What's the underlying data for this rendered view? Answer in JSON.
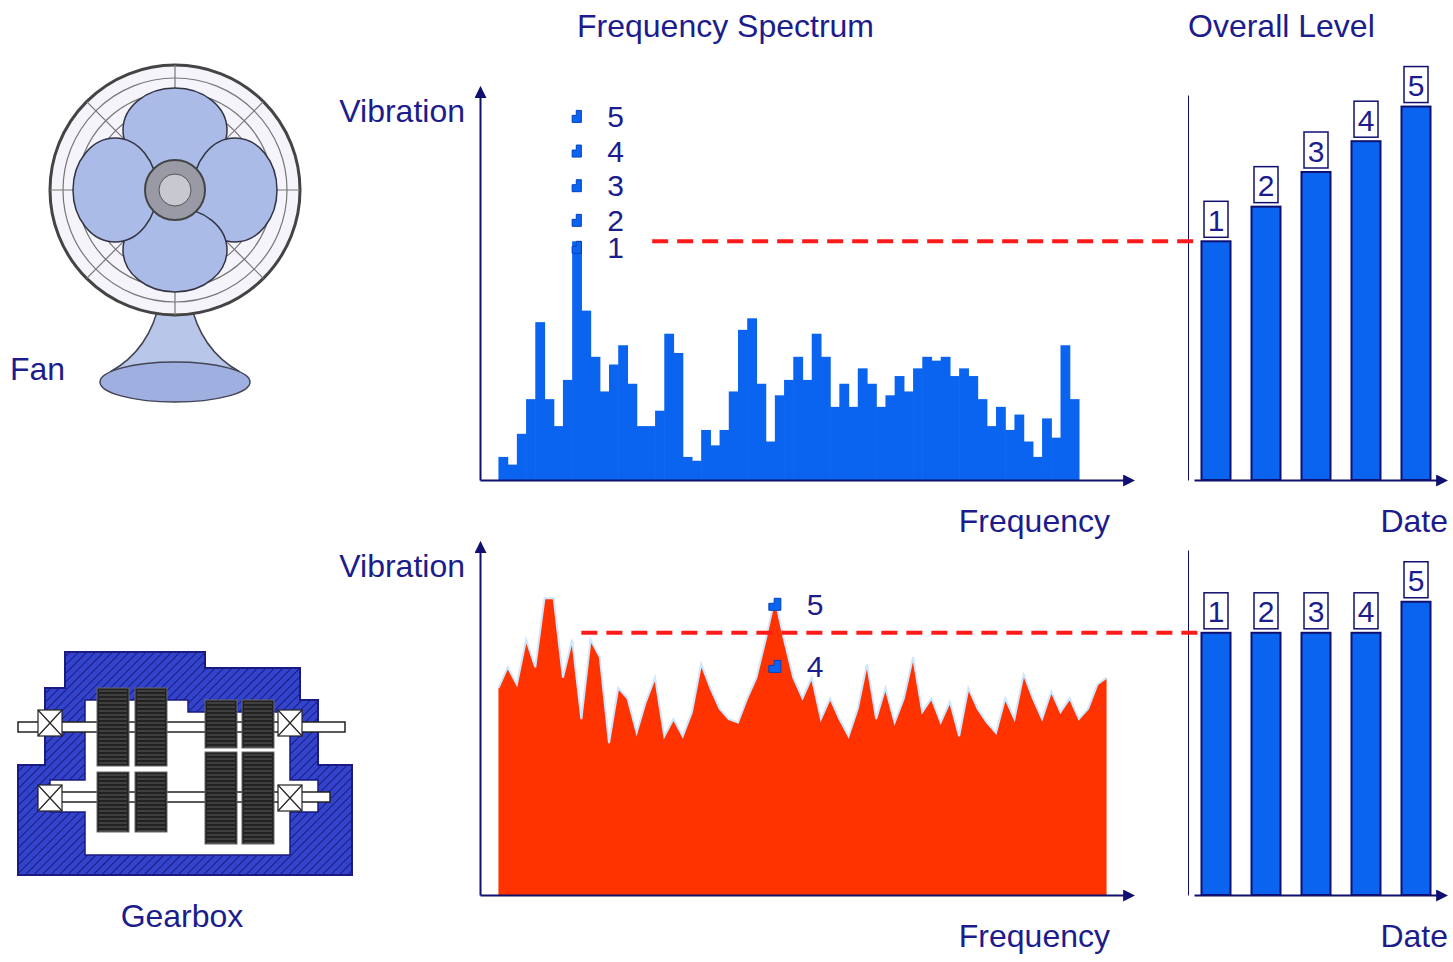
{
  "chart_data": [
    {
      "type": "histogram",
      "machine": "Fan",
      "title": "Frequency Spectrum",
      "y_label": "Vibration",
      "x_label": "Frequency",
      "bins": [
        2,
        3,
        4,
        5,
        6,
        7,
        8,
        9,
        10,
        11,
        12,
        13,
        14,
        15,
        16,
        17,
        18,
        19,
        20,
        21,
        22,
        23,
        24,
        25,
        26,
        27,
        28,
        29,
        30,
        31,
        32,
        33,
        34,
        35,
        36,
        37,
        38,
        39,
        40,
        41,
        42,
        43,
        44,
        45,
        46,
        47,
        48,
        49,
        50,
        51,
        52,
        53,
        54,
        55,
        56,
        57,
        58,
        59,
        60,
        61,
        62,
        63,
        64,
        65
      ],
      "values": [
        6,
        4,
        12,
        21,
        41,
        21,
        14,
        26,
        62,
        44,
        32,
        23,
        30,
        35,
        25,
        14,
        14,
        18,
        38,
        33,
        6,
        5,
        13,
        9,
        13,
        23,
        39,
        42,
        25,
        10,
        22,
        26,
        32,
        26,
        38,
        32,
        19,
        25,
        19,
        29,
        25,
        19,
        22,
        27,
        23,
        29,
        32,
        31,
        32,
        27,
        29,
        27,
        21,
        14,
        19,
        13,
        17,
        10,
        6,
        16,
        11,
        35,
        21
      ],
      "color": "#0a64f0",
      "xlim": [
        0,
        70
      ],
      "ylim": [
        0,
        100
      ],
      "tick_labels": false,
      "peak_levels": {
        "x": 10,
        "labels": [
          "1",
          "2",
          "3",
          "4",
          "5"
        ],
        "values": [
          62,
          69,
          78,
          87,
          96
        ]
      }
    },
    {
      "type": "bar",
      "title": "Overall Level",
      "x_label": "Date",
      "categories": [
        "1",
        "2",
        "3",
        "4",
        "5"
      ],
      "values": [
        62,
        71,
        80,
        88,
        97
      ],
      "color": "#0a64f0",
      "ylim": [
        0,
        100
      ],
      "tick_labels": "x"
    },
    {
      "type": "area",
      "machine": "Gearbox",
      "y_label": "Vibration",
      "x_label": "Frequency",
      "x": [
        2,
        3,
        4,
        5,
        6,
        7,
        8,
        9,
        10,
        11,
        12,
        13,
        14,
        15,
        16,
        17,
        18,
        19,
        20,
        21,
        22,
        23,
        24,
        25,
        26,
        27,
        28,
        29,
        30,
        31,
        32,
        33,
        34,
        35,
        36,
        37,
        38,
        39,
        40,
        41,
        42,
        43,
        44,
        45,
        46,
        47,
        48,
        49,
        50,
        51,
        52,
        53,
        54,
        55,
        56,
        57,
        58,
        59,
        60,
        61,
        62,
        63,
        64,
        65,
        66,
        67,
        68
      ],
      "values": [
        60,
        66,
        61,
        74,
        66,
        86,
        86,
        63,
        74,
        51,
        74,
        69,
        44,
        60,
        57,
        47,
        56,
        63,
        46,
        51,
        46,
        53,
        67,
        60,
        54,
        51,
        50,
        57,
        63,
        74,
        86,
        74,
        63,
        57,
        63,
        51,
        57,
        51,
        46,
        54,
        67,
        51,
        60,
        50,
        57,
        69,
        53,
        57,
        50,
        56,
        46,
        60,
        54,
        50,
        47,
        57,
        51,
        64,
        57,
        51,
        59,
        53,
        57,
        51,
        54,
        61,
        63
      ],
      "color": "#ff3300",
      "xlim": [
        0,
        70
      ],
      "ylim": [
        0,
        100
      ],
      "tick_labels": false,
      "peak_levels": {
        "x": 32,
        "labels": [
          "4",
          "5"
        ],
        "values": [
          68,
          86
        ]
      }
    },
    {
      "type": "bar",
      "x_label": "Date",
      "categories": [
        "1",
        "2",
        "3",
        "4",
        "5"
      ],
      "values": [
        76,
        76,
        76,
        76,
        85
      ],
      "color": "#0a64f0",
      "ylim": [
        0,
        100
      ],
      "tick_labels": "x"
    }
  ]
}
